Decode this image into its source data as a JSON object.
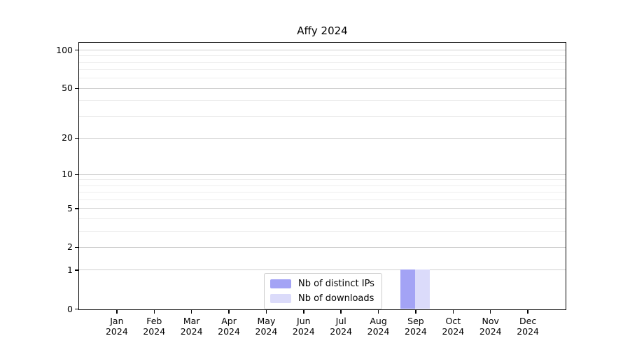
{
  "chart_data": {
    "type": "bar",
    "title": "Affy 2024",
    "categories": [
      "Jan 2024",
      "Feb 2024",
      "Mar 2024",
      "Apr 2024",
      "May 2024",
      "Jun 2024",
      "Jul 2024",
      "Aug 2024",
      "Sep 2024",
      "Oct 2024",
      "Nov 2024",
      "Dec 2024"
    ],
    "series": [
      {
        "name": "Nb of distinct IPs",
        "color": "#a3a3f5",
        "values": [
          0,
          0,
          0,
          0,
          0,
          0,
          0,
          0,
          1,
          0,
          0,
          0
        ]
      },
      {
        "name": "Nb of downloads",
        "color": "#dbdbfa",
        "values": [
          0,
          0,
          0,
          0,
          0,
          0,
          0,
          0,
          1,
          0,
          0,
          0
        ]
      }
    ],
    "xlabel": "",
    "ylabel": "",
    "yscale": "log1p",
    "ylim": [
      0,
      113.5
    ],
    "y_ticks": [
      0,
      1,
      2,
      5,
      10,
      20,
      50,
      100
    ],
    "y_minor_ticks": [
      3,
      4,
      6,
      7,
      8,
      9,
      30,
      40,
      60,
      70,
      80,
      90
    ],
    "grid": "horizontal-major-and-minor",
    "legend_position": "lower center"
  },
  "colors": {
    "background": "#ffffff",
    "axis": "#000000",
    "grid_major": "#cfcfcf",
    "grid_minor": "#ededed",
    "text": "#000000",
    "legend_border": "#cccccc"
  }
}
